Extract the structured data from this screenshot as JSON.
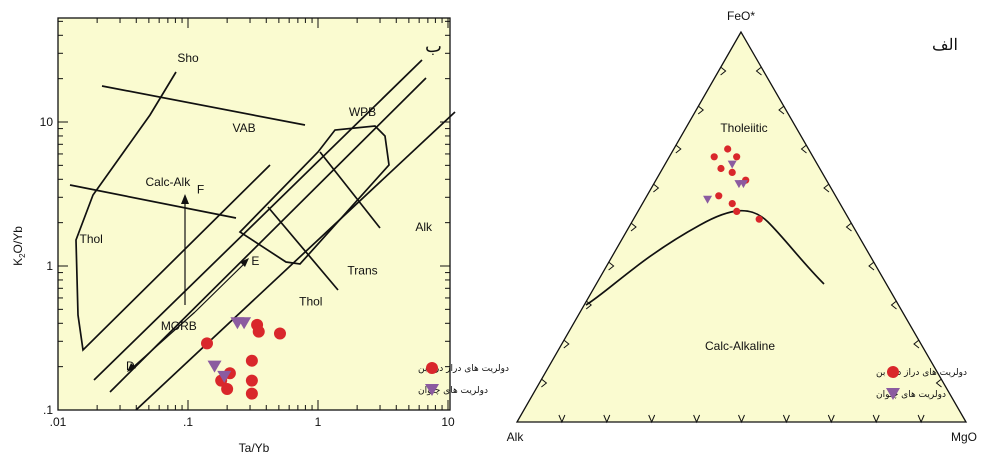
{
  "colors": {
    "background": "#fafbd0",
    "red": "#d9272b",
    "purple": "#8b5ba0",
    "ink": "#111111"
  },
  "chart_data": [
    {
      "type": "scatter",
      "panel_label": "ب",
      "xlabel": "Ta/Yb",
      "ylabel_main": "K",
      "ylabel_sub": "2",
      "ylabel_rest": "O/Yb",
      "x_scale": "log",
      "y_scale": "log",
      "xlim": [
        0.01,
        10
      ],
      "ylim": [
        0.1,
        50
      ],
      "x_ticks": [
        {
          "v": 0.01,
          "label": ".01"
        },
        {
          "v": 0.1,
          "label": ".1"
        },
        {
          "v": 1,
          "label": "1"
        },
        {
          "v": 10,
          "label": "10"
        }
      ],
      "y_ticks": [
        {
          "v": 0.1,
          "label": ".1"
        },
        {
          "v": 1,
          "label": "1"
        },
        {
          "v": 10,
          "label": "10"
        }
      ],
      "field_labels": [
        {
          "text": "Sho",
          "x": 0.1,
          "y": 26
        },
        {
          "text": "VAB",
          "x": 0.27,
          "y": 8.5
        },
        {
          "text": "Calc-Alk",
          "x": 0.07,
          "y": 3.6
        },
        {
          "text": "Thol",
          "x": 0.018,
          "y": 1.45
        },
        {
          "text": "WPB",
          "x": 2.2,
          "y": 11
        },
        {
          "text": "Alk",
          "x": 6.5,
          "y": 1.75
        },
        {
          "text": "Trans",
          "x": 2.2,
          "y": 0.87
        },
        {
          "text": "Thol",
          "x": 0.88,
          "y": 0.53
        },
        {
          "text": "MORB",
          "x": 0.085,
          "y": 0.36
        }
      ],
      "vector_labels": [
        {
          "text": "F",
          "x": 0.125,
          "y": 3.2
        },
        {
          "text": "E",
          "x": 0.33,
          "y": 1.02
        },
        {
          "text": "D",
          "x": 0.036,
          "y": 0.19
        }
      ],
      "legend": [
        {
          "label": "دولریت های دراز دره بن",
          "marker": "circle",
          "color": "#d9272b"
        },
        {
          "label": "دولریت های چلوان",
          "marker": "triangle",
          "color": "#8b5ba0"
        }
      ],
      "series": [
        {
          "name": "دولریت های دراز دره بن",
          "marker": "circle",
          "points": [
            [
              0.14,
              0.29
            ],
            [
              0.34,
              0.39
            ],
            [
              0.35,
              0.35
            ],
            [
              0.51,
              0.34
            ],
            [
              0.31,
              0.22
            ],
            [
              0.21,
              0.18
            ],
            [
              0.31,
              0.16
            ],
            [
              0.18,
              0.16
            ],
            [
              0.2,
              0.14
            ],
            [
              0.31,
              0.13
            ]
          ]
        },
        {
          "name": "دولریت های چلوان",
          "marker": "triangle",
          "points": [
            [
              0.24,
              0.4
            ],
            [
              0.27,
              0.4
            ],
            [
              0.16,
              0.2
            ],
            [
              0.19,
              0.17
            ]
          ]
        }
      ]
    },
    {
      "type": "ternary",
      "panel_label": "الف",
      "apex_labels": {
        "top": "FeO*",
        "left": "Alk",
        "right": "MgO"
      },
      "field_labels": {
        "upper": "Tholeiitic",
        "lower": "Calc-Alkaline"
      },
      "legend": [
        {
          "label": "دولریت های دراز دره بن",
          "marker": "circle",
          "color": "#d9272b"
        },
        {
          "label": "دولریت های چلوان",
          "marker": "triangle",
          "color": "#8b5ba0"
        }
      ],
      "series": [
        {
          "name": "دولریت های دراز دره بن",
          "marker": "circle",
          "points_feo_mgo": [
            [
              0.68,
              0.1
            ],
            [
              0.7,
              0.12
            ],
            [
              0.68,
              0.15
            ],
            [
              0.65,
              0.13
            ],
            [
              0.64,
              0.16
            ],
            [
              0.62,
              0.2
            ],
            [
              0.58,
              0.16
            ],
            [
              0.56,
              0.2
            ],
            [
              0.54,
              0.22
            ],
            [
              0.52,
              0.28
            ]
          ]
        },
        {
          "name": "دولریت های چلوان",
          "marker": "triangle",
          "points_feo_mgo": [
            [
              0.66,
              0.15
            ],
            [
              0.61,
              0.19
            ],
            [
              0.61,
              0.2
            ],
            [
              0.57,
              0.14
            ]
          ]
        }
      ]
    }
  ]
}
